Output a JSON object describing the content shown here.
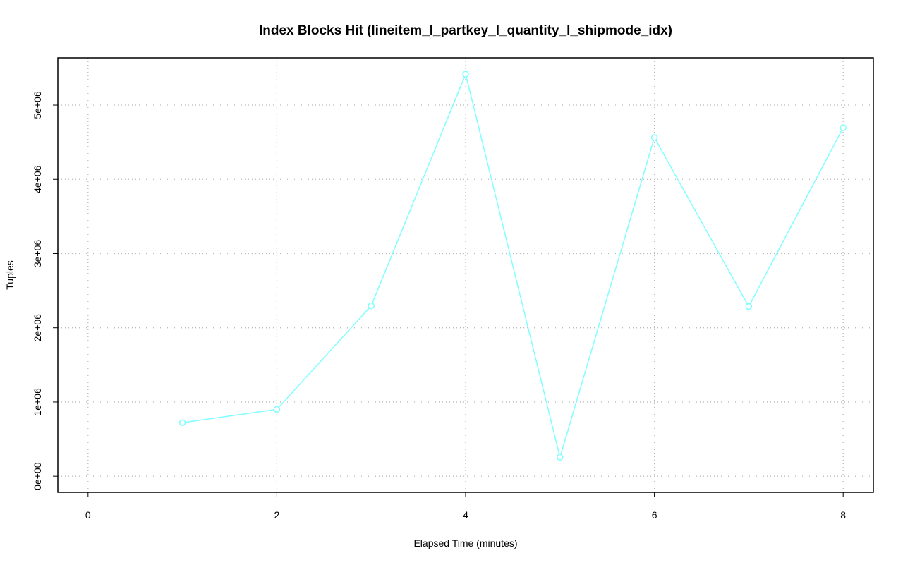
{
  "chart_data": {
    "type": "line",
    "title": "Index Blocks Hit (lineitem_l_partkey_l_quantity_l_shipmode_idx)",
    "xlabel": "Elapsed Time (minutes)",
    "ylabel": "Tuples",
    "x": [
      1,
      2,
      3,
      4,
      5,
      6,
      7,
      8
    ],
    "series": [
      {
        "name": "Index Blocks Hit",
        "color": "#7fffff",
        "values": [
          721000,
          901000,
          2296000,
          5417000,
          256000,
          4564000,
          2287000,
          4696000
        ]
      }
    ],
    "xlim": [
      -0.32,
      8.32
    ],
    "xticks": [
      0,
      2,
      4,
      6,
      8
    ],
    "ylim": [
      -217000,
      5637000
    ],
    "yticks": [
      {
        "value": 0,
        "label": "0e+00"
      },
      {
        "value": 1000000,
        "label": "1e+06"
      },
      {
        "value": 2000000,
        "label": "2e+06"
      },
      {
        "value": 3000000,
        "label": "3e+06"
      },
      {
        "value": 4000000,
        "label": "4e+06"
      },
      {
        "value": 5000000,
        "label": "5e+06"
      }
    ],
    "grid": true
  }
}
